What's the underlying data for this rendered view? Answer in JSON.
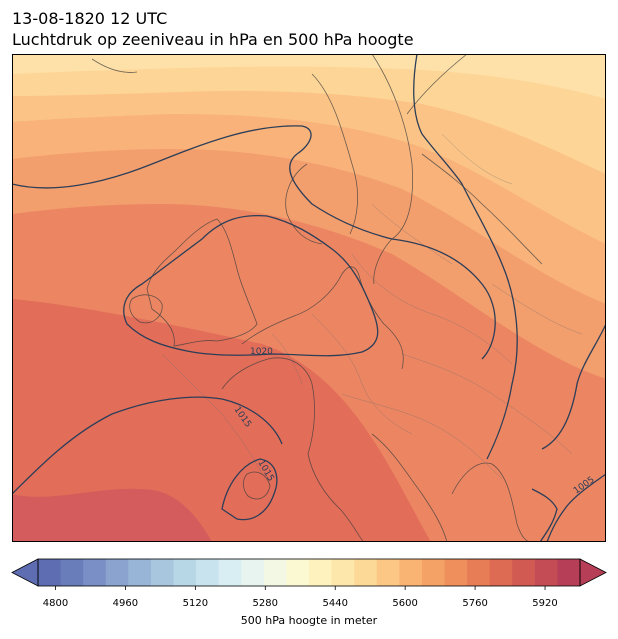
{
  "title": {
    "line1": "13-08-1820 12 UTC",
    "line2": "Luchtdruk op zeeniveau in hPa en 500 hPa hoogte"
  },
  "map": {
    "isobar_labels": [
      "1020",
      "1015",
      "1015",
      "1005"
    ]
  },
  "colorbar": {
    "label": "500 hPa hoogte in meter",
    "ticks": [
      "4800",
      "4960",
      "5120",
      "5280",
      "5440",
      "5600",
      "5760",
      "5920"
    ],
    "range": [
      4760,
      6000
    ],
    "colors": [
      "#5e6db1",
      "#6a7dbb",
      "#7a8fc6",
      "#8aa3cf",
      "#98b4d7",
      "#a8c7df",
      "#b7d6e6",
      "#c8e3ee",
      "#d8eef3",
      "#e7f4f0",
      "#f3f8e4",
      "#fbf9d2",
      "#fef2bf",
      "#fee7ab",
      "#fdd997",
      "#fcc785",
      "#f9b474",
      "#f5a266",
      "#ef905c",
      "#e77d56",
      "#dd6b53",
      "#d15b53",
      "#c44d55",
      "#b63f57"
    ]
  }
}
